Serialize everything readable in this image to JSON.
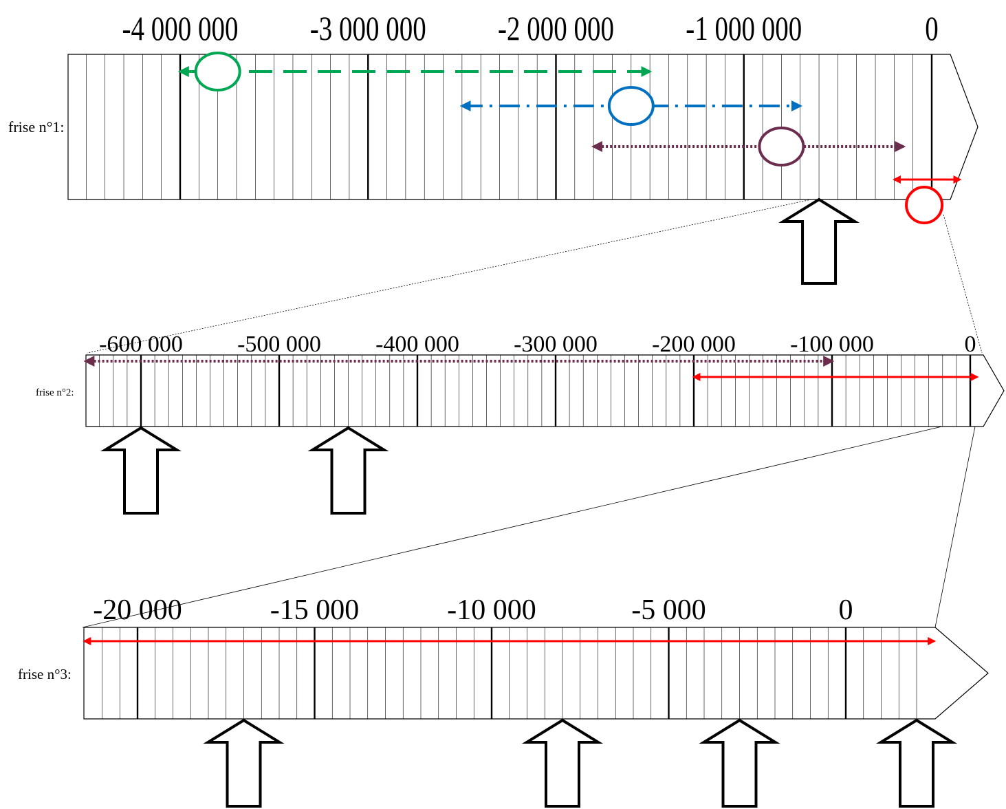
{
  "colors": {
    "outline": "#000000",
    "green": "#00a651",
    "blue": "#0070c0",
    "purple": "#6b2c4e",
    "red": "#ff0000"
  },
  "timelines": [
    {
      "id": "frise-1",
      "label": "frise n°1:",
      "ticks": [
        {
          "value": -4000000,
          "label": "-4 000 000"
        },
        {
          "value": -3000000,
          "label": "-3 000 000"
        },
        {
          "value": -2000000,
          "label": "-2 000 000"
        },
        {
          "value": -1000000,
          "label": "-1 000 000"
        },
        {
          "value": 0,
          "label": "0"
        }
      ],
      "subdivisions_per_major": 10,
      "ranges": [
        {
          "color": "green",
          "style": "dashed",
          "from": -4000000,
          "to": -1500000,
          "marker": "ellipse"
        },
        {
          "color": "blue",
          "style": "dashdot",
          "from": -2500000,
          "to": -700000,
          "marker": "ellipse"
        },
        {
          "color": "purple",
          "style": "dotted",
          "from": -1800000,
          "to": -150000,
          "marker": "ellipse"
        },
        {
          "color": "red",
          "style": "solid",
          "from": -200000,
          "to": 150000,
          "marker": "circle"
        }
      ],
      "pointer_arrows_at": [
        -600000
      ]
    },
    {
      "id": "frise-2",
      "label": "frise n°2:",
      "ticks": [
        {
          "value": -600000,
          "label": "-600 000"
        },
        {
          "value": -500000,
          "label": "-500 000"
        },
        {
          "value": -400000,
          "label": "-400 000"
        },
        {
          "value": -300000,
          "label": "-300 000"
        },
        {
          "value": -200000,
          "label": "-200 000"
        },
        {
          "value": -100000,
          "label": "-100 000"
        },
        {
          "value": 0,
          "label": "0"
        }
      ],
      "subdivisions_per_major": 10,
      "ranges": [
        {
          "color": "purple",
          "style": "dotted",
          "from": -640000,
          "to": -100000
        },
        {
          "color": "red",
          "style": "solid",
          "from": -200000,
          "to": 5000
        }
      ],
      "pointer_arrows_at": [
        -600000,
        -450000
      ]
    },
    {
      "id": "frise-3",
      "label": "frise n°3:",
      "ticks": [
        {
          "value": -20000,
          "label": "-20 000"
        },
        {
          "value": -15000,
          "label": "-15 000"
        },
        {
          "value": -10000,
          "label": "-10 000"
        },
        {
          "value": -5000,
          "label": "-5 000"
        },
        {
          "value": 0,
          "label": "0"
        }
      ],
      "subdivisions_per_major": 10,
      "ranges": [
        {
          "color": "red",
          "style": "solid",
          "from": -21500,
          "to": 2500
        }
      ],
      "pointer_arrows_at": [
        -17000,
        -8000,
        -3000,
        2000
      ]
    }
  ]
}
